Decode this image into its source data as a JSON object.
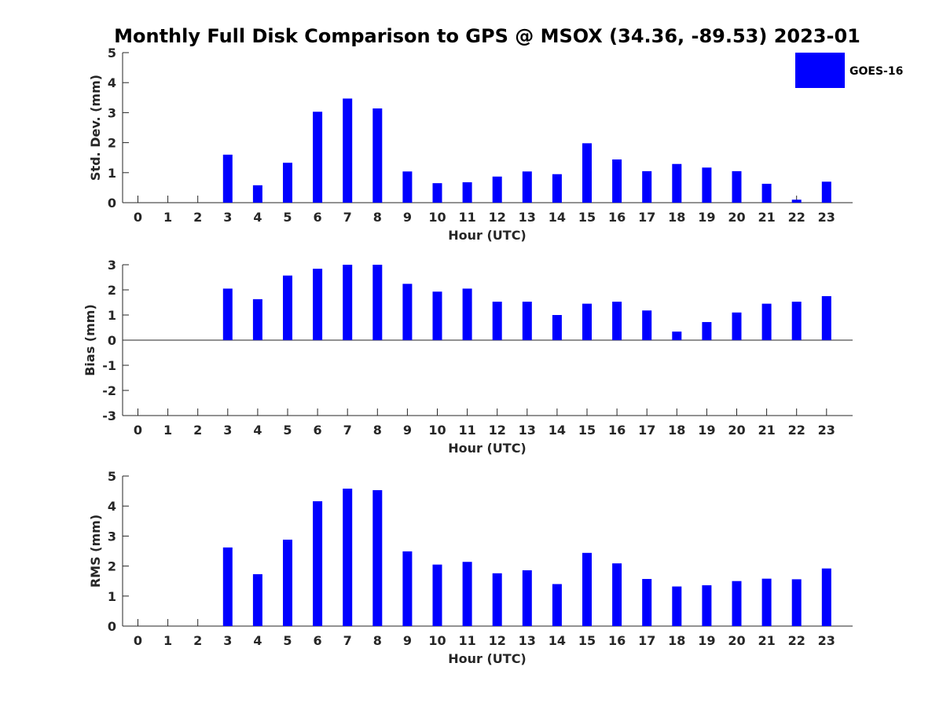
{
  "title": "Monthly Full Disk Comparison to GPS @ MSOX (34.36, -89.53) 2023-01",
  "legend": {
    "label": "GOES-16",
    "color": "#0000ff"
  },
  "chart_data": [
    {
      "type": "bar",
      "ylabel": "Std. Dev. (mm)",
      "xlabel": "Hour (UTC)",
      "ylim": [
        0,
        5
      ],
      "yticks": [
        0,
        1,
        2,
        3,
        4,
        5
      ],
      "categories": [
        0,
        1,
        2,
        3,
        4,
        5,
        6,
        7,
        8,
        9,
        10,
        11,
        12,
        13,
        14,
        15,
        16,
        17,
        18,
        19,
        20,
        21,
        22,
        23
      ],
      "series": [
        {
          "name": "GOES-16",
          "color": "#0000ff",
          "values": [
            null,
            null,
            null,
            1.6,
            0.58,
            1.33,
            3.03,
            3.47,
            3.14,
            1.04,
            0.65,
            0.68,
            0.87,
            1.04,
            0.95,
            1.98,
            1.44,
            1.05,
            1.29,
            1.17,
            1.05,
            0.63,
            0.1,
            0.7
          ]
        }
      ]
    },
    {
      "type": "bar",
      "ylabel": "Bias (mm)",
      "xlabel": "Hour (UTC)",
      "ylim": [
        -3,
        3
      ],
      "yticks": [
        -3,
        -2,
        -1,
        0,
        1,
        2,
        3
      ],
      "categories": [
        0,
        1,
        2,
        3,
        4,
        5,
        6,
        7,
        8,
        9,
        10,
        11,
        12,
        13,
        14,
        15,
        16,
        17,
        18,
        19,
        20,
        21,
        22,
        23
      ],
      "series": [
        {
          "name": "GOES-16",
          "color": "#0000ff",
          "values": [
            null,
            null,
            null,
            2.05,
            1.63,
            2.57,
            2.84,
            3.0,
            3.0,
            2.24,
            1.93,
            2.05,
            1.53,
            1.53,
            1.0,
            1.45,
            1.53,
            1.18,
            0.34,
            0.72,
            1.1,
            1.45,
            1.53,
            1.75
          ]
        }
      ]
    },
    {
      "type": "bar",
      "ylabel": "RMS (mm)",
      "xlabel": "Hour (UTC)",
      "ylim": [
        0,
        5
      ],
      "yticks": [
        0,
        1,
        2,
        3,
        4,
        5
      ],
      "categories": [
        0,
        1,
        2,
        3,
        4,
        5,
        6,
        7,
        8,
        9,
        10,
        11,
        12,
        13,
        14,
        15,
        16,
        17,
        18,
        19,
        20,
        21,
        22,
        23
      ],
      "series": [
        {
          "name": "GOES-16",
          "color": "#0000ff",
          "values": [
            null,
            null,
            null,
            2.62,
            1.73,
            2.88,
            4.16,
            4.58,
            4.53,
            2.49,
            2.05,
            2.14,
            1.76,
            1.86,
            1.4,
            2.44,
            2.09,
            1.57,
            1.32,
            1.36,
            1.5,
            1.58,
            1.56,
            1.92
          ]
        }
      ]
    }
  ]
}
